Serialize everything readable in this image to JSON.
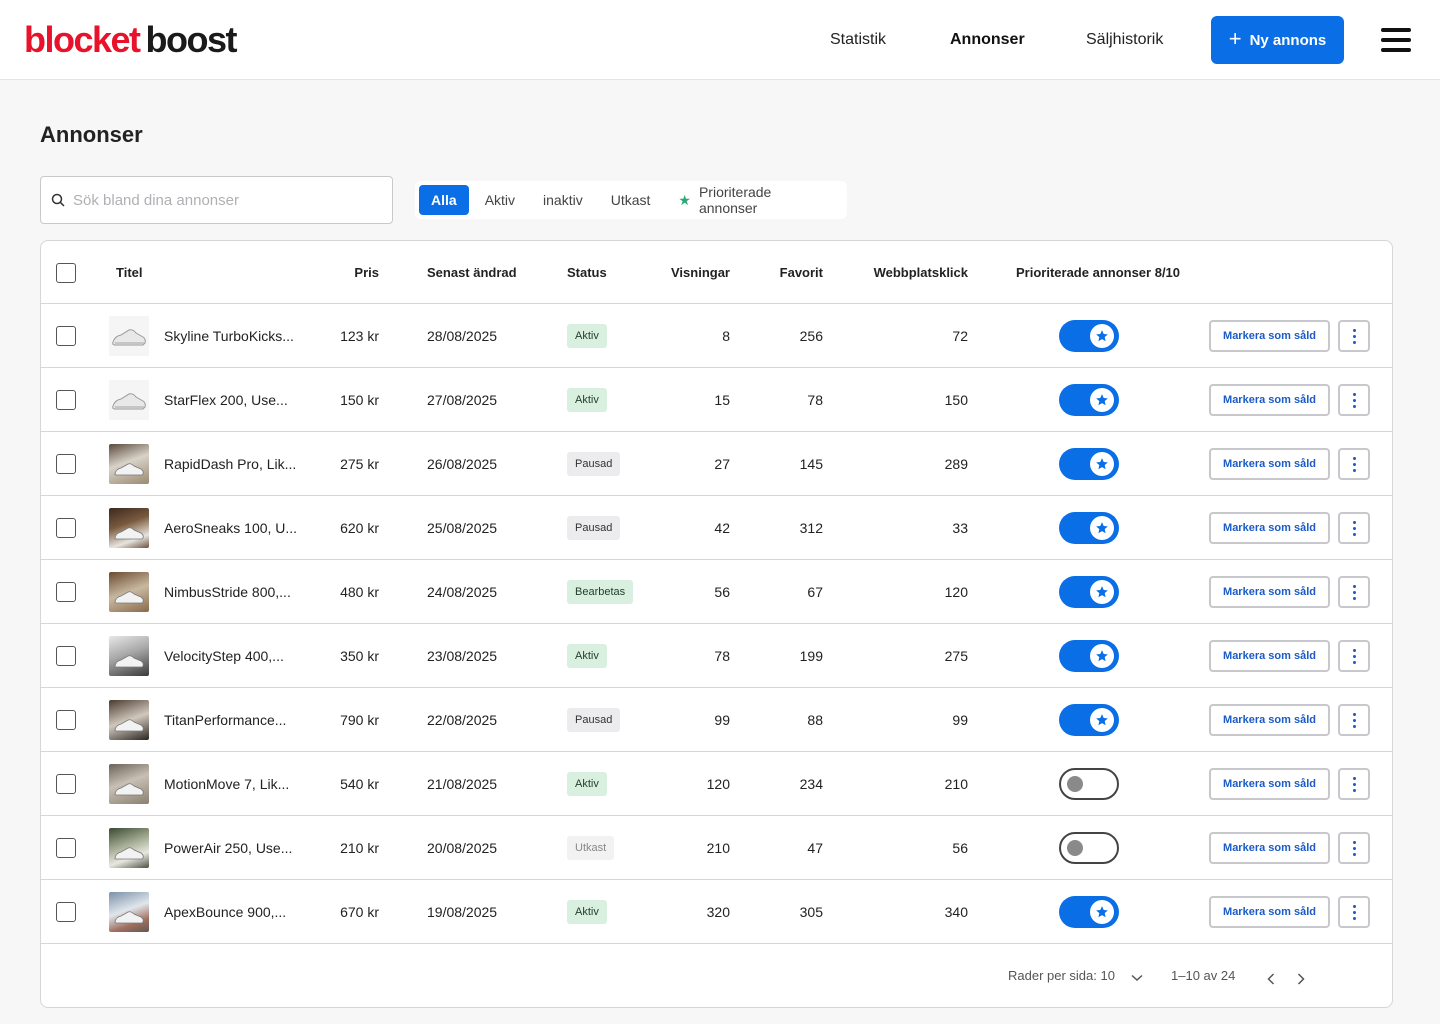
{
  "brand": {
    "part1": "blocket",
    "part2": "boost",
    "red": "#e8122a"
  },
  "nav": {
    "items": [
      {
        "label": "Statistik",
        "active": false
      },
      {
        "label": "Annonser",
        "active": true
      },
      {
        "label": "Säljhistorik",
        "active": false
      }
    ],
    "new_button": "Ny annons",
    "new_icon": "plus-icon",
    "menu_icon": "hamburger-menu-icon"
  },
  "page": {
    "title": "Annonser"
  },
  "search": {
    "placeholder": "Sök bland dina annonser",
    "value": "",
    "icon": "search-icon"
  },
  "filters": {
    "tabs": [
      "Alla",
      "Aktiv",
      "inaktiv",
      "Utkast"
    ],
    "active": "Alla",
    "priority_label": "Prioriterade annonser",
    "priority_icon": "star-icon"
  },
  "table": {
    "headers": {
      "title": "Titel",
      "price": "Pris",
      "modified": "Senast ändrad",
      "status": "Status",
      "views": "Visningar",
      "favorites": "Favorit",
      "clicks": "Webbplatsklick",
      "priority": "Prioriterade annonser 8/10"
    },
    "mark_sold_label": "Markera som såld",
    "rows": [
      {
        "title": "Skyline TurboKicks...",
        "price": "123 kr",
        "modified": "28/08/2025",
        "status": "Aktiv",
        "views": "8",
        "favorites": "256",
        "clicks": "72",
        "prioritized": true
      },
      {
        "title": "StarFlex 200, Use...",
        "price": "150 kr",
        "modified": "27/08/2025",
        "status": "Aktiv",
        "views": "15",
        "favorites": "78",
        "clicks": "150",
        "prioritized": true
      },
      {
        "title": "RapidDash Pro, Lik...",
        "price": "275 kr",
        "modified": "26/08/2025",
        "status": "Pausad",
        "views": "27",
        "favorites": "145",
        "clicks": "289",
        "prioritized": true
      },
      {
        "title": "AeroSneaks 100, U...",
        "price": "620 kr",
        "modified": "25/08/2025",
        "status": "Pausad",
        "views": "42",
        "favorites": "312",
        "clicks": "33",
        "prioritized": true
      },
      {
        "title": "NimbusStride 800,...",
        "price": "480 kr",
        "modified": "24/08/2025",
        "status": "Bearbetas",
        "views": "56",
        "favorites": "67",
        "clicks": "120",
        "prioritized": true
      },
      {
        "title": "VelocityStep 400,...",
        "price": "350 kr",
        "modified": "23/08/2025",
        "status": "Aktiv",
        "views": "78",
        "favorites": "199",
        "clicks": "275",
        "prioritized": true
      },
      {
        "title": "TitanPerformance...",
        "price": "790 kr",
        "modified": "22/08/2025",
        "status": "Pausad",
        "views": "99",
        "favorites": "88",
        "clicks": "99",
        "prioritized": true
      },
      {
        "title": "MotionMove 7, Lik...",
        "price": "540 kr",
        "modified": "21/08/2025",
        "status": "Aktiv",
        "views": "120",
        "favorites": "234",
        "clicks": "210",
        "prioritized": false
      },
      {
        "title": "PowerAir 250, Use...",
        "price": "210 kr",
        "modified": "20/08/2025",
        "status": "Utkast",
        "views": "210",
        "favorites": "47",
        "clicks": "56",
        "prioritized": false
      },
      {
        "title": "ApexBounce 900,...",
        "price": "670 kr",
        "modified": "19/08/2025",
        "status": "Aktiv",
        "views": "320",
        "favorites": "305",
        "clicks": "340",
        "prioritized": true
      }
    ]
  },
  "pagination": {
    "rows_per_page": "Rader per sida: 10",
    "range": "1–10 av 24"
  }
}
